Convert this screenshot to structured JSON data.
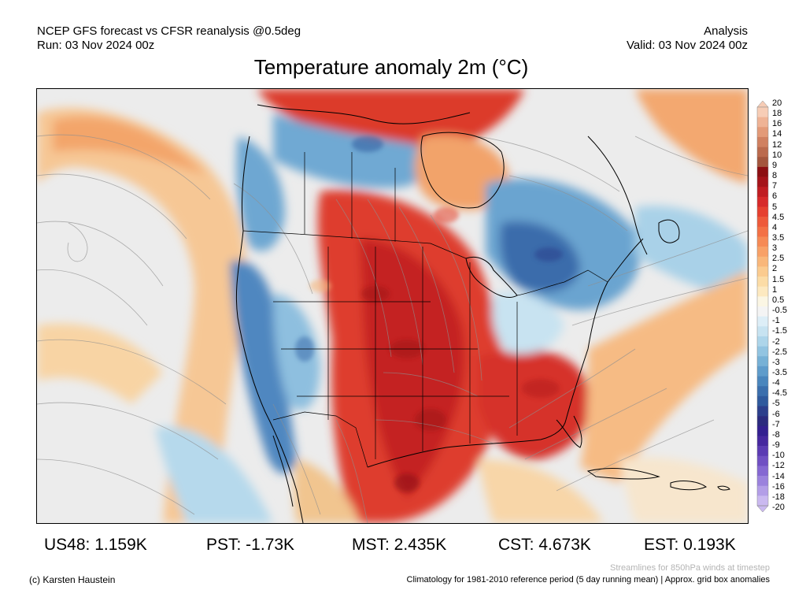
{
  "header": {
    "left_line1": "NCEP GFS forecast vs CFSR reanalysis @0.5deg",
    "left_line2": "Run: 03 Nov 2024 00z",
    "right_line1": "Analysis",
    "right_line2": "Valid: 03 Nov 2024 00z"
  },
  "title": "Temperature anomaly 2m (°C)",
  "colorbar": {
    "labels": [
      "20",
      "18",
      "16",
      "14",
      "12",
      "10",
      "9",
      "8",
      "7",
      "6",
      "5",
      "4.5",
      "4",
      "3.5",
      "3",
      "2.5",
      "2",
      "1.5",
      "1",
      "0.5",
      "-0.5",
      "-1",
      "-1.5",
      "-2",
      "-2.5",
      "-3",
      "-3.5",
      "-4",
      "-4.5",
      "-5",
      "-6",
      "-7",
      "-8",
      "-9",
      "-10",
      "-12",
      "-14",
      "-16",
      "-18",
      "-20"
    ],
    "colors": [
      "#f7cdb6",
      "#efb395",
      "#e39a78",
      "#d08060",
      "#bb6a4d",
      "#a4563d",
      "#8c0f12",
      "#a5141a",
      "#c01d22",
      "#d72a2a",
      "#e6402f",
      "#ee5a3a",
      "#f37145",
      "#f68a55",
      "#f8a167",
      "#f9b77a",
      "#fbcb8f",
      "#fcdca6",
      "#fde9c0",
      "#fbf6e4",
      "#f4f4f4",
      "#ddeef7",
      "#c7e3f1",
      "#add5ea",
      "#92c4e1",
      "#77b1d6",
      "#5f9ccb",
      "#4a86bd",
      "#3b6fad",
      "#2f5a9d",
      "#2c3f8c",
      "#2b2b7e",
      "#332090",
      "#46289f",
      "#5b3bb3",
      "#7050c3",
      "#8568d2",
      "#9b82dd",
      "#b39ee7",
      "#cab9f0"
    ]
  },
  "map": {
    "dataset": "Temperature anomaly 2m (°C)",
    "notes": "Warm anomalies over central/southern US and Canadian prairies; cold anomalies over Pacific coast and Quebec/Labrador"
  },
  "stats": {
    "us48": "US48: 1.159K",
    "pst": "PST: -1.73K",
    "mst": "MST: 2.435K",
    "cst": "CST: 4.673K",
    "est": "EST: 0.193K"
  },
  "footer": {
    "streamlines": "Streamlines for 850hPa winds at timestep",
    "copyright": "(c) Karsten Haustein",
    "climatology": "Climatology for 1981-2010 reference period (5 day running mean) | Approx. grid box anomalies"
  }
}
